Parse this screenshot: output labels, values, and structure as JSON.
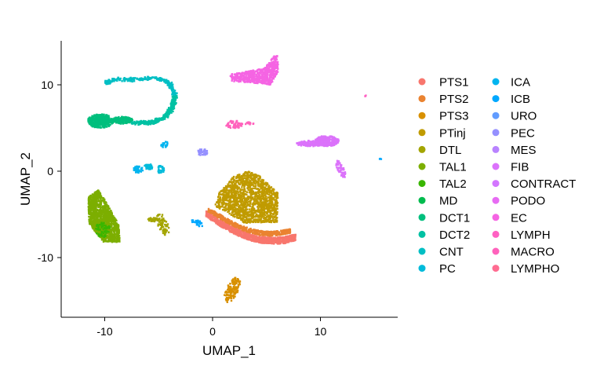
{
  "chart_data": {
    "type": "scatter",
    "title": "",
    "xlabel": "UMAP_1",
    "ylabel": "UMAP_2",
    "xlim": [
      -14,
      17
    ],
    "ylim": [
      -17,
      15
    ],
    "xticks": [
      -10,
      0,
      10
    ],
    "yticks": [
      -10,
      0,
      10
    ],
    "grid": false,
    "legend_position": "right",
    "series": [
      {
        "name": "PTS1",
        "color": "#F8766D",
        "clusters": [
          {
            "type": "crescent",
            "x0": -0.6,
            "x1": 7.7,
            "ytop": [
              -4.5,
              -5.4,
              -6.2,
              -6.8,
              -7.3,
              -7.6,
              -7.7,
              -7.6,
              -7.3
            ],
            "thick": 0.75,
            "n": 900
          }
        ]
      },
      {
        "name": "PTS2",
        "color": "#EA8331",
        "clusters": [
          {
            "type": "crescent",
            "x0": -0.4,
            "x1": 7.2,
            "ytop": [
              -4.2,
              -4.9,
              -5.6,
              -6.2,
              -6.6,
              -6.9,
              -7.0,
              -6.9,
              -6.7
            ],
            "thick": 0.5,
            "n": 500
          }
        ]
      },
      {
        "name": "PTS3",
        "color": "#D89000",
        "clusters": [
          {
            "type": "ellipse",
            "cx": 1.8,
            "cy": -13.8,
            "rx": 0.55,
            "ry": 1.6,
            "rot": -20,
            "n": 140
          }
        ]
      },
      {
        "name": "PTinj",
        "color": "#C09B00",
        "clusters": [
          {
            "type": "polygon",
            "pts": [
              [
                0.6,
                -2.5
              ],
              [
                2.0,
                -0.5
              ],
              [
                3.3,
                0.0
              ],
              [
                4.4,
                -0.6
              ],
              [
                6.1,
                -2.6
              ],
              [
                6.0,
                -5.9
              ],
              [
                3.0,
                -6.0
              ],
              [
                0.2,
                -4.0
              ]
            ],
            "n": 1500
          }
        ]
      },
      {
        "name": "DTL",
        "color": "#A3A500",
        "clusters": [
          {
            "type": "ellipse",
            "cx": -4.6,
            "cy": -6.2,
            "rx": 0.5,
            "ry": 1.3,
            "rot": 15,
            "n": 70
          },
          {
            "type": "ellipse",
            "cx": -5.4,
            "cy": -5.6,
            "rx": 0.6,
            "ry": 0.25,
            "rot": 0,
            "n": 30
          }
        ]
      },
      {
        "name": "TAL1",
        "color": "#7CAE00",
        "clusters": [
          {
            "type": "polygon",
            "pts": [
              [
                -11.5,
                -3.0
              ],
              [
                -10.6,
                -2.2
              ],
              [
                -9.9,
                -3.5
              ],
              [
                -8.7,
                -6.2
              ],
              [
                -8.6,
                -8.2
              ],
              [
                -10.1,
                -8.2
              ],
              [
                -11.5,
                -6.0
              ]
            ],
            "n": 1200
          }
        ]
      },
      {
        "name": "TAL2",
        "color": "#39B600",
        "clusters": [
          {
            "type": "ellipse",
            "cx": -10.2,
            "cy": -6.8,
            "rx": 0.7,
            "ry": 0.9,
            "rot": 0,
            "n": 60
          }
        ]
      },
      {
        "name": "MD",
        "color": "#00BB4E",
        "clusters": [
          {
            "type": "ellipse",
            "cx": -10.2,
            "cy": 5.8,
            "rx": 0.4,
            "ry": 0.4,
            "rot": 0,
            "n": 40
          }
        ]
      },
      {
        "name": "DCT1",
        "color": "#00BF7D",
        "clusters": [
          {
            "type": "ellipse",
            "cx": -10.4,
            "cy": 5.8,
            "rx": 1.2,
            "ry": 0.8,
            "rot": 0,
            "n": 380
          },
          {
            "type": "ellipse",
            "cx": -8.4,
            "cy": 5.9,
            "rx": 1.0,
            "ry": 0.4,
            "rot": 0,
            "n": 180
          }
        ]
      },
      {
        "name": "DCT2",
        "color": "#00C1A3",
        "clusters": [
          {
            "type": "path",
            "pts": [
              [
                -7.5,
                5.6
              ],
              [
                -5.6,
                5.6
              ],
              [
                -4.4,
                6.3
              ],
              [
                -3.7,
                7.5
              ],
              [
                -3.5,
                8.8
              ]
            ],
            "w": 0.35,
            "n": 300
          }
        ]
      },
      {
        "name": "CNT",
        "color": "#00BFC4",
        "clusters": [
          {
            "type": "path",
            "pts": [
              [
                -3.5,
                8.8
              ],
              [
                -4.0,
                10.2
              ],
              [
                -5.3,
                10.8
              ],
              [
                -7.0,
                10.6
              ],
              [
                -9.0,
                10.6
              ],
              [
                -10.0,
                10.2
              ]
            ],
            "w": 0.3,
            "n": 260
          }
        ]
      },
      {
        "name": "PC",
        "color": "#00BBDB",
        "clusters": [
          {
            "type": "ellipse",
            "cx": -5.9,
            "cy": 0.5,
            "rx": 0.5,
            "ry": 0.3,
            "rot": 0,
            "n": 40
          },
          {
            "type": "ellipse",
            "cx": -4.8,
            "cy": 0.2,
            "rx": 0.3,
            "ry": 0.5,
            "rot": 0,
            "n": 30
          }
        ]
      },
      {
        "name": "ICA",
        "color": "#00B4EF",
        "clusters": [
          {
            "type": "ellipse",
            "cx": -6.9,
            "cy": 0.2,
            "rx": 0.45,
            "ry": 0.4,
            "rot": 0,
            "n": 40
          },
          {
            "type": "ellipse",
            "cx": -4.5,
            "cy": 3.0,
            "rx": 0.25,
            "ry": 0.5,
            "rot": -30,
            "n": 20
          }
        ]
      },
      {
        "name": "ICB",
        "color": "#00A8FF",
        "clusters": [
          {
            "type": "ellipse",
            "cx": -1.4,
            "cy": -6.0,
            "rx": 0.6,
            "ry": 0.3,
            "rot": -30,
            "n": 30
          },
          {
            "type": "ellipse",
            "cx": 15.6,
            "cy": 1.4,
            "rx": 0.1,
            "ry": 0.1,
            "rot": 0,
            "n": 3
          }
        ]
      },
      {
        "name": "URO",
        "color": "#619CFF",
        "clusters": []
      },
      {
        "name": "PEC",
        "color": "#9590FF",
        "clusters": [
          {
            "type": "ellipse",
            "cx": -0.9,
            "cy": 2.2,
            "rx": 0.5,
            "ry": 0.4,
            "rot": 0,
            "n": 40
          }
        ]
      },
      {
        "name": "MES",
        "color": "#B983FF",
        "clusters": []
      },
      {
        "name": "FIB",
        "color": "#DB72FB",
        "clusters": [
          {
            "type": "ellipse",
            "cx": 10.6,
            "cy": 3.5,
            "rx": 1.1,
            "ry": 0.6,
            "rot": 0,
            "n": 300
          },
          {
            "type": "ellipse",
            "cx": 9.0,
            "cy": 3.2,
            "rx": 1.2,
            "ry": 0.35,
            "rot": 0,
            "n": 120
          },
          {
            "type": "ellipse",
            "cx": 11.9,
            "cy": 0.2,
            "rx": 0.3,
            "ry": 1.1,
            "rot": 20,
            "n": 60
          }
        ]
      },
      {
        "name": "CONTRACT",
        "color": "#D376FF",
        "clusters": []
      },
      {
        "name": "PODO",
        "color": "#E76BF3",
        "clusters": []
      },
      {
        "name": "EC",
        "color": "#F564E3",
        "clusters": [
          {
            "type": "polygon",
            "pts": [
              [
                1.6,
                11.2
              ],
              [
                4.8,
                11.9
              ],
              [
                6.0,
                13.8
              ],
              [
                6.1,
                11.6
              ],
              [
                5.4,
                10.0
              ],
              [
                4.0,
                10.2
              ],
              [
                1.8,
                10.4
              ]
            ],
            "n": 650
          }
        ]
      },
      {
        "name": "LYMPH",
        "color": "#FF61C3",
        "clusters": [
          {
            "type": "ellipse",
            "cx": 14.2,
            "cy": 8.7,
            "rx": 0.08,
            "ry": 0.1,
            "rot": 0,
            "n": 3
          }
        ]
      },
      {
        "name": "MACRO",
        "color": "#FF62BC",
        "clusters": [
          {
            "type": "ellipse",
            "cx": 2.0,
            "cy": 5.4,
            "rx": 0.8,
            "ry": 0.45,
            "rot": 0,
            "n": 60
          },
          {
            "type": "ellipse",
            "cx": 3.4,
            "cy": 5.5,
            "rx": 0.4,
            "ry": 0.2,
            "rot": 0,
            "n": 12
          }
        ]
      },
      {
        "name": "LYMPHO",
        "color": "#FF6C91",
        "clusters": []
      }
    ]
  },
  "legend": {
    "column_1": [
      "PTS1",
      "PTS2",
      "PTS3",
      "PTinj",
      "DTL",
      "TAL1",
      "TAL2",
      "MD",
      "DCT1",
      "DCT2",
      "CNT",
      "PC"
    ],
    "column_2": [
      "ICA",
      "ICB",
      "URO",
      "PEC",
      "MES",
      "FIB",
      "CONTRACT",
      "PODO",
      "EC",
      "LYMPH",
      "MACRO",
      "LYMPHO"
    ]
  }
}
